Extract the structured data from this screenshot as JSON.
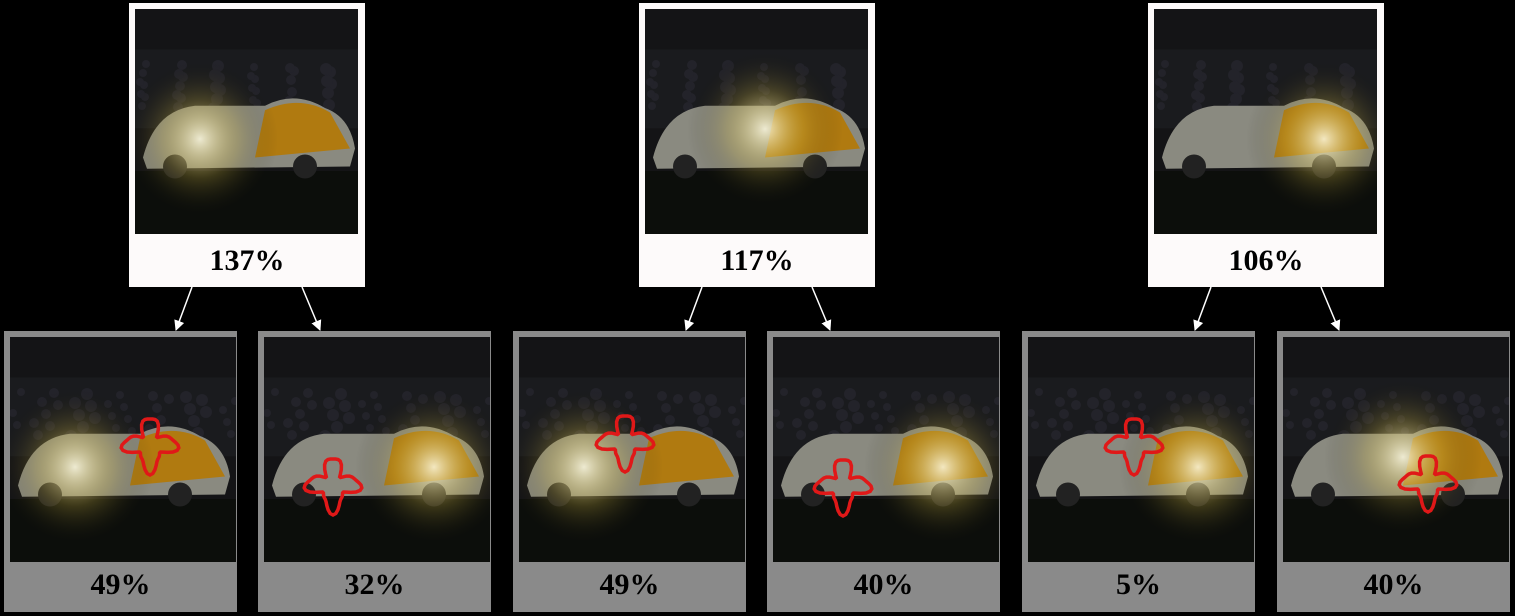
{
  "colors": {
    "background": "#000000",
    "parent_frame": "#fdfafa",
    "child_frame": "#8a8a8a",
    "arrow": "#ffffff",
    "outline": "#e01818"
  },
  "groups": [
    {
      "parent": {
        "label": "137%",
        "highlight": "front"
      },
      "children": [
        {
          "label": "49%",
          "highlight": "front"
        },
        {
          "label": "32%",
          "highlight": "rear"
        }
      ]
    },
    {
      "parent": {
        "label": "117%",
        "highlight": "center"
      },
      "children": [
        {
          "label": "49%",
          "highlight": "front"
        },
        {
          "label": "40%",
          "highlight": "rear"
        }
      ]
    },
    {
      "parent": {
        "label": "106%",
        "highlight": "rear"
      },
      "children": [
        {
          "label": "5%",
          "highlight": "rear"
        },
        {
          "label": "40%",
          "highlight": "center"
        }
      ]
    }
  ]
}
